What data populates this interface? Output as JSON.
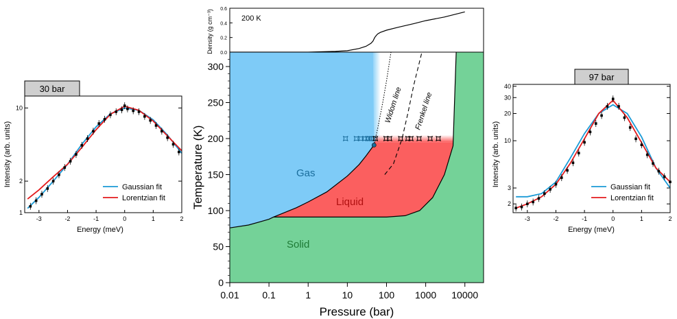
{
  "chart_data": [
    {
      "type": "line",
      "panel": "left-inset",
      "title": "30 bar",
      "xlabel": "Energy (meV)",
      "ylabel": "Intensity (arb. units)",
      "xlim": [
        -3.5,
        2
      ],
      "ylog": true,
      "ylim": [
        1,
        13
      ],
      "x_ticks": [
        -3,
        -2,
        -1,
        0,
        1,
        2
      ],
      "y_ticks": [
        1,
        2,
        10
      ],
      "legend": "lower-right",
      "colors": {
        "gaussian": "#1a9ad6",
        "lorentzian": "#e31a1c",
        "data": "#000000"
      },
      "series": [
        {
          "name": "Gaussian fit",
          "x": [
            -3.4,
            -3,
            -2.5,
            -2,
            -1.5,
            -1,
            -0.5,
            0,
            0.5,
            1,
            1.5,
            2
          ],
          "values": [
            1.1,
            1.4,
            2.0,
            2.9,
            4.5,
            6.6,
            8.8,
            10.0,
            9.5,
            7.7,
            5.5,
            3.7
          ]
        },
        {
          "name": "Lorentzian fit",
          "x": [
            -3.4,
            -3,
            -2.5,
            -2,
            -1.5,
            -1,
            -0.5,
            0,
            0.5,
            1,
            1.5,
            2
          ],
          "values": [
            1.35,
            1.65,
            2.2,
            2.9,
            4.2,
            6.2,
            8.7,
            10.4,
            9.5,
            7.5,
            5.4,
            3.9
          ]
        },
        {
          "name": "",
          "x": [
            -3.3,
            -3.1,
            -2.9,
            -2.7,
            -2.5,
            -2.3,
            -2.1,
            -1.9,
            -1.7,
            -1.5,
            -1.3,
            -1.1,
            -0.9,
            -0.7,
            -0.5,
            -0.3,
            -0.1,
            0.0,
            0.1,
            0.3,
            0.5,
            0.7,
            0.9,
            1.1,
            1.3,
            1.5,
            1.7,
            1.9
          ],
          "values": [
            1.15,
            1.3,
            1.5,
            1.7,
            2.0,
            2.3,
            2.7,
            3.1,
            3.6,
            4.4,
            5.1,
            6.0,
            7.1,
            7.8,
            8.6,
            9.2,
            9.6,
            10.5,
            9.8,
            9.4,
            9.2,
            8.3,
            7.6,
            6.8,
            6.0,
            5.2,
            4.5,
            3.8
          ]
        }
      ]
    },
    {
      "type": "line",
      "panel": "top-density",
      "annotation": "200 K",
      "ylabel": "Density (g cm⁻³)",
      "xlog": true,
      "xlim": [
        0.01,
        30000
      ],
      "ylim": [
        0,
        0.6
      ],
      "y_ticks": [
        0.0,
        0.2,
        0.4,
        0.6
      ],
      "series": [
        {
          "name": "",
          "x": [
            0.01,
            0.1,
            1,
            5,
            10,
            20,
            30,
            40,
            45,
            50,
            55,
            60,
            70,
            100,
            200,
            500,
            1000,
            3000,
            10000
          ],
          "values": [
            0,
            0,
            0,
            0.01,
            0.02,
            0.05,
            0.08,
            0.12,
            0.15,
            0.2,
            0.23,
            0.25,
            0.27,
            0.3,
            0.34,
            0.39,
            0.43,
            0.48,
            0.55
          ]
        }
      ]
    },
    {
      "type": "area",
      "panel": "main-phase-diagram",
      "xlabel": "Pressure (bar)",
      "ylabel": "Temperature (K)",
      "xlog": true,
      "xlim": [
        0.01,
        30000
      ],
      "ylim": [
        0,
        320
      ],
      "x_ticks": [
        "0.01",
        "0.1",
        "1",
        "10",
        "100",
        "1000",
        "10000"
      ],
      "y_ticks": [
        "0",
        "50",
        "100",
        "150",
        "200",
        "250",
        "300"
      ],
      "regions": {
        "gas": "Gas",
        "liquid": "Liquid",
        "solid": "Solid"
      },
      "line_labels": {
        "widom": "Widom line",
        "frenkel": "Frenkel line"
      },
      "colors": {
        "gas": "#7ecbf7",
        "liquid": "#fb5f5f",
        "solid": "#74d298",
        "line": "#000000",
        "point": "#1a6d9c"
      },
      "sublimation_curve": {
        "x": [
          0.01,
          0.03,
          0.1,
          0.13
        ],
        "values": [
          76,
          80,
          88,
          91
        ]
      },
      "boiling_curve": {
        "x": [
          0.13,
          0.5,
          1,
          3,
          10,
          20,
          30,
          48
        ],
        "values": [
          91,
          104,
          112,
          126,
          148,
          164,
          176,
          191
        ]
      },
      "melting_curve": {
        "x": [
          0.13,
          1,
          10,
          100,
          300,
          700,
          1500,
          3000,
          5000,
          6000
        ],
        "values": [
          91,
          91,
          91,
          91,
          93,
          100,
          118,
          150,
          190,
          320
        ]
      },
      "widom_line": {
        "x": [
          48,
          60,
          80,
          100,
          130
        ],
        "values": [
          191,
          215,
          250,
          280,
          320
        ]
      },
      "frenkel_line": {
        "x": [
          90,
          150,
          250,
          350,
          500,
          800
        ],
        "values": [
          150,
          165,
          200,
          235,
          275,
          320
        ]
      },
      "critical_point": {
        "x": 48,
        "value": 191
      },
      "measurements": {
        "x": [
          9,
          17,
          22,
          28,
          33,
          38,
          42,
          46,
          52,
          97,
          120,
          230,
          350,
          420,
          680,
          1300,
          2100
        ],
        "values": [
          200,
          200,
          200,
          200,
          200,
          200,
          200,
          200,
          200,
          200,
          200,
          200,
          200,
          200,
          200,
          200,
          200
        ]
      }
    },
    {
      "type": "line",
      "panel": "right-inset",
      "title": "97 bar",
      "xlabel": "Energy (meV)",
      "ylabel": "Intensity (arb. units)",
      "xlim": [
        -3.5,
        2
      ],
      "ylog": true,
      "ylim": [
        1.6,
        42
      ],
      "x_ticks": [
        -3,
        -2,
        -1,
        0,
        1,
        2
      ],
      "y_ticks": [
        2,
        3,
        10,
        20,
        30,
        40
      ],
      "legend": "lower-right",
      "colors": {
        "gaussian": "#1a9ad6",
        "lorentzian": "#e31a1c",
        "data": "#000000"
      },
      "series": [
        {
          "name": "Gaussian fit",
          "x": [
            -3.4,
            -3,
            -2.5,
            -2,
            -1.5,
            -1,
            -0.5,
            0,
            0.5,
            1,
            1.5,
            2
          ],
          "values": [
            2.4,
            2.4,
            2.6,
            3.5,
            6.4,
            12,
            20,
            25,
            20,
            11,
            5.0,
            3.0
          ]
        },
        {
          "name": "Lorentzian fit",
          "x": [
            -3.4,
            -3,
            -2.5,
            -2,
            -1.5,
            -1,
            -0.5,
            0,
            0.5,
            1,
            1.5,
            2
          ],
          "values": [
            1.8,
            2.0,
            2.4,
            3.3,
            5.6,
            10.5,
            20,
            28,
            18,
            9.5,
            5.0,
            3.5
          ]
        },
        {
          "name": "",
          "x": [
            -3.4,
            -3.2,
            -3.0,
            -2.8,
            -2.6,
            -2.4,
            -2.2,
            -2.0,
            -1.8,
            -1.6,
            -1.4,
            -1.2,
            -1.0,
            -0.8,
            -0.6,
            -0.4,
            -0.2,
            0.0,
            0.2,
            0.4,
            0.6,
            0.8,
            1.0,
            1.2,
            1.4,
            1.6,
            1.8,
            2.0
          ],
          "values": [
            1.8,
            1.85,
            2.0,
            2.1,
            2.3,
            2.6,
            2.9,
            3.3,
            3.9,
            4.7,
            5.7,
            7.3,
            9.6,
            12.5,
            15.5,
            19,
            24,
            29,
            24,
            18,
            14,
            10.5,
            9.0,
            7.0,
            5.6,
            4.6,
            4.0,
            3.5
          ]
        }
      ]
    }
  ]
}
